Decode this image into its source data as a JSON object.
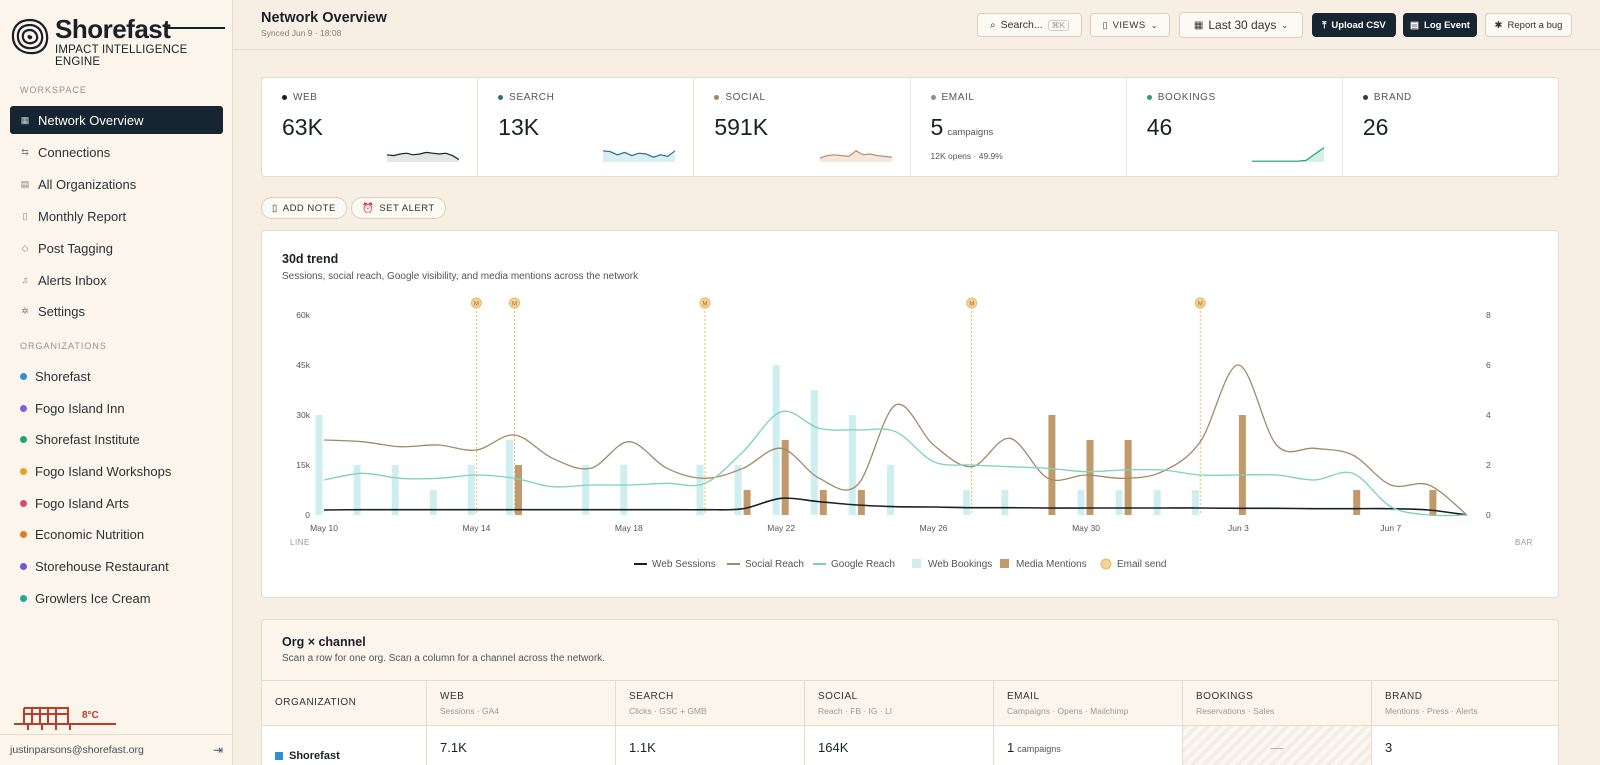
{
  "brand": {
    "name": "Shorefast",
    "tagline": "IMPACT INTELLIGENCE ENGINE"
  },
  "sidebar": {
    "workspace_label": "WORKSPACE",
    "items": [
      {
        "label": "Network Overview",
        "icon": "grid-icon",
        "active": true
      },
      {
        "label": "Connections",
        "icon": "arrows-icon"
      },
      {
        "label": "All Organizations",
        "icon": "building-icon"
      },
      {
        "label": "Monthly Report",
        "icon": "document-icon"
      },
      {
        "label": "Post Tagging",
        "icon": "tag-icon"
      },
      {
        "label": "Alerts Inbox",
        "icon": "bell-icon"
      },
      {
        "label": "Settings",
        "icon": "gear-icon"
      }
    ],
    "orgs_label": "ORGANIZATIONS",
    "orgs": [
      {
        "label": "Shorefast",
        "color": "#2d8fd5"
      },
      {
        "label": "Fogo Island Inn",
        "color": "#8a5bd6"
      },
      {
        "label": "Shorefast Institute",
        "color": "#1fa37a"
      },
      {
        "label": "Fogo Island Workshops",
        "color": "#e9a21f"
      },
      {
        "label": "Fogo Island Arts",
        "color": "#d9487a"
      },
      {
        "label": "Economic Nutrition",
        "color": "#e07b2a"
      },
      {
        "label": "Storehouse Restaurant",
        "color": "#6a5ad6"
      },
      {
        "label": "Growlers Ice Cream",
        "color": "#22a89a"
      }
    ],
    "weather_temp": "8°C",
    "user_email": "justinparsons@shorefast.org"
  },
  "topbar": {
    "title": "Network Overview",
    "synced": "Synced Jun 9 · 18:08",
    "search_placeholder": "Search...",
    "search_shortcut": "⌘K",
    "views_label": "VIEWS",
    "date_range": "Last 30 days",
    "upload_label": "Upload CSV",
    "log_event_label": "Log Event",
    "report_bug_label": "Report a bug"
  },
  "kpis": [
    {
      "label": "WEB",
      "value": "63K",
      "dot": "#1a2027",
      "spark": [
        0.55,
        0.6,
        0.5,
        0.45,
        0.55,
        0.5,
        0.4,
        0.45,
        0.5,
        0.45,
        0.6,
        0.85
      ],
      "spark_color": "#1a2027",
      "spark_fill": "#e2e6e9"
    },
    {
      "label": "SEARCH",
      "value": "13K",
      "dot": "#2b6f86",
      "spark": [
        0.3,
        0.35,
        0.55,
        0.4,
        0.6,
        0.45,
        0.5,
        0.7,
        0.55,
        0.65,
        0.3
      ],
      "spark_color": "#2b6f86",
      "spark_fill": "#dbeef1"
    },
    {
      "label": "SOCIAL",
      "value": "591K",
      "dot": "#a08a63",
      "spark": [
        0.75,
        0.6,
        0.55,
        0.6,
        0.65,
        0.3,
        0.55,
        0.5,
        0.6,
        0.65,
        0.7
      ],
      "spark_color": "#c08a6a",
      "spark_fill": "#f5e7dc"
    },
    {
      "label": "EMAIL",
      "value": "5",
      "unit": "campaigns",
      "sub": "12K opens · 49.9%",
      "dot": "#8a8f94"
    },
    {
      "label": "BOOKINGS",
      "value": "46",
      "dot": "#1fa37a",
      "spark": [
        0.95,
        0.95,
        0.95,
        0.95,
        0.95,
        0.95,
        0.9,
        0.5,
        0.1
      ],
      "spark_color": "#1fa37a",
      "spark_fill": "#d4efe3"
    },
    {
      "label": "BRAND",
      "value": "26",
      "dot": "#333a40"
    }
  ],
  "actions": {
    "add_note": "ADD NOTE",
    "set_alert": "SET ALERT"
  },
  "trend": {
    "title": "30d trend",
    "subtitle": "Sessions, social reach, Google visibility, and media mentions across the network",
    "left_axis_label": "LINE",
    "right_axis_label": "BAR",
    "email_marker": "M"
  },
  "chart_data": {
    "type": "line",
    "x": [
      "May 10",
      "May 11",
      "May 12",
      "May 13",
      "May 14",
      "May 15",
      "May 16",
      "May 17",
      "May 18",
      "May 19",
      "May 20",
      "May 21",
      "May 22",
      "May 23",
      "May 24",
      "May 25",
      "May 26",
      "May 27",
      "May 28",
      "May 29",
      "May 30",
      "May 31",
      "Jun 1",
      "Jun 2",
      "Jun 3",
      "Jun 4",
      "Jun 5",
      "Jun 6",
      "Jun 7",
      "Jun 8",
      "Jun 9"
    ],
    "x_ticks": [
      "May 10",
      "May 14",
      "May 18",
      "May 22",
      "May 26",
      "May 30",
      "Jun 3",
      "Jun 7"
    ],
    "y_left": {
      "ticks": [
        "0",
        "15k",
        "30k",
        "45k",
        "60k"
      ],
      "range": [
        0,
        60000
      ]
    },
    "y_right": {
      "ticks": [
        "0",
        "2",
        "4",
        "6",
        "8"
      ],
      "range": [
        0,
        8
      ]
    },
    "series": [
      {
        "name": "Web Sessions",
        "color": "#1a2027",
        "axis": "left",
        "values": [
          1500,
          1600,
          1600,
          1600,
          1600,
          1600,
          1600,
          1600,
          1600,
          1600,
          1600,
          1900,
          5000,
          4000,
          3000,
          2500,
          2400,
          2200,
          2200,
          2100,
          2100,
          2100,
          2100,
          2100,
          2000,
          2000,
          1900,
          1900,
          1900,
          1500,
          0
        ]
      },
      {
        "name": "Social Reach",
        "color": "#a08a63",
        "axis": "left",
        "values": [
          22500,
          22000,
          20500,
          21000,
          19500,
          24000,
          17000,
          14000,
          22000,
          14000,
          11000,
          14000,
          20000,
          11000,
          9000,
          33000,
          21000,
          14500,
          23000,
          11000,
          12000,
          11000,
          13000,
          22000,
          45000,
          21000,
          20000,
          18000,
          9000,
          9000,
          0
        ]
      },
      {
        "name": "Google Reach",
        "color": "#7fd1b9",
        "axis": "left",
        "values": [
          10500,
          12500,
          11000,
          11000,
          12000,
          11000,
          8500,
          9000,
          9000,
          9500,
          9500,
          19000,
          31000,
          26000,
          25500,
          25000,
          16000,
          15000,
          14500,
          14000,
          13000,
          13500,
          13500,
          12000,
          12000,
          12000,
          10500,
          12500,
          2500,
          0,
          0
        ]
      },
      {
        "name": "Web Bookings",
        "type": "bar",
        "color": "#cfeef0",
        "axis": "right",
        "values": [
          4,
          2,
          2,
          1,
          2,
          3,
          0,
          2,
          2,
          0,
          2,
          2,
          6,
          5,
          4,
          2,
          0,
          1,
          1,
          0,
          1,
          1,
          1,
          1,
          0,
          0,
          0,
          0,
          0,
          0,
          0
        ]
      },
      {
        "name": "Media Mentions",
        "type": "bar",
        "color": "#c09a6b",
        "axis": "right",
        "values": [
          0,
          0,
          0,
          0,
          0,
          2,
          0,
          0,
          0,
          0,
          0,
          1,
          3,
          1,
          1,
          0,
          0,
          0,
          0,
          4,
          3,
          3,
          0,
          0,
          4,
          0,
          0,
          1,
          0,
          1,
          0
        ]
      }
    ],
    "email_sends": [
      "May 14",
      "May 15",
      "May 20",
      "May 27",
      "Jun 2"
    ],
    "legend": [
      "Web Sessions",
      "Social Reach",
      "Google Reach",
      "Web Bookings",
      "Media Mentions",
      "Email send"
    ],
    "legend_placement": "bottom"
  },
  "matrix": {
    "title": "Org × channel",
    "subtitle": "Scan a row for one org. Scan a column for a channel across the network.",
    "org_header": "ORGANIZATION",
    "columns": [
      {
        "name": "WEB",
        "sub": "Sessions · GA4"
      },
      {
        "name": "SEARCH",
        "sub": "Clicks · GSC + GMB"
      },
      {
        "name": "SOCIAL",
        "sub": "Reach · FB · IG · LI"
      },
      {
        "name": "EMAIL",
        "sub": "Campaigns · Opens · Mailchimp"
      },
      {
        "name": "BOOKINGS",
        "sub": "Reservations · Sales"
      },
      {
        "name": "BRAND",
        "sub": "Mentions · Press · Alerts"
      }
    ],
    "row": {
      "org": "Shorefast",
      "web": "7.1K",
      "search": "1.1K",
      "social": "164K",
      "email": "1",
      "email_unit": "campaigns",
      "bookings": "—",
      "brand": "3"
    }
  }
}
